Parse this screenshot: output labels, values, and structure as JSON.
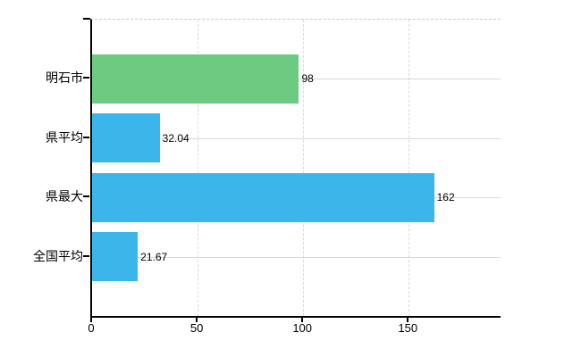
{
  "chart_data": {
    "type": "bar",
    "orientation": "horizontal",
    "categories": [
      "明石市",
      "県平均",
      "県最大",
      "全国平均"
    ],
    "values": [
      98,
      32.04,
      162,
      21.67
    ],
    "value_labels": [
      "98",
      "32.04",
      "162",
      "21.67"
    ],
    "bar_colors": [
      "#6ccb81",
      "#3cb6ea",
      "#3cb6ea",
      "#3cb6ea"
    ],
    "x_ticks": [
      0,
      50,
      100,
      150
    ],
    "x_tick_labels": [
      "0",
      "50",
      "100",
      "150"
    ],
    "xlim": [
      0,
      193.5
    ],
    "grid": true,
    "legend": "none",
    "title": ""
  },
  "colors": {
    "background": "#ffffff",
    "bar_green": "#6ccb81",
    "bar_blue": "#3cb6ea",
    "gridline": "#d9d9d9",
    "axis": "#000000",
    "text": "#000000"
  }
}
